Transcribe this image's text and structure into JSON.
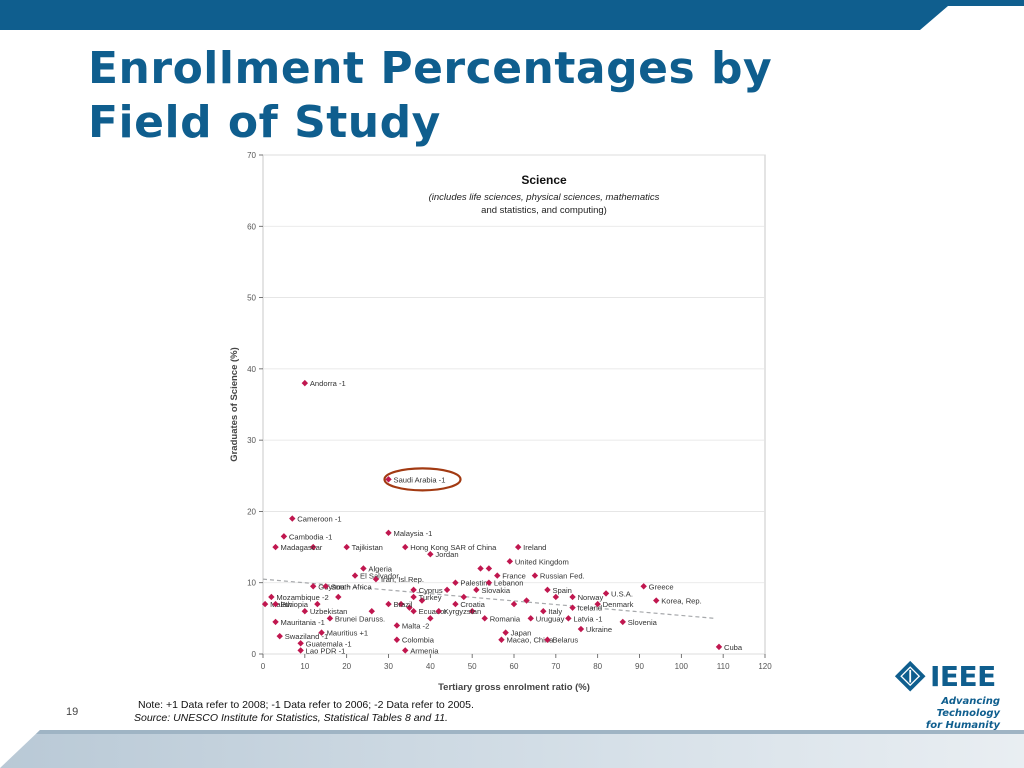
{
  "slide": {
    "title": "Enrollment Percentages by Field of Study",
    "note": "Note: +1 Data refer to 2008; -1 Data refer to 2006; -2 Data refer to 2005.",
    "source": "Source: UNESCO Institute for Statistics, Statistical Tables 8 and 11.",
    "slide_number": "19",
    "logo_text": "IEEE",
    "tagline_line1": "Advancing Technology",
    "tagline_line2": "for Humanity"
  },
  "colors": {
    "brand_blue": "#0f5e8e",
    "point": "#c0174f",
    "highlight_circle": "#a23a12",
    "trend": "#a7a9ac"
  },
  "chart_data": {
    "type": "scatter",
    "title": "Science",
    "subtitle_line1": "(includes life sciences, physical sciences, mathematics",
    "subtitle_line2": "and statistics, and computing)",
    "xlabel": "Tertiary gross enrolment ratio (%)",
    "ylabel": "Graduates of Science (%)",
    "xlim": [
      0,
      120
    ],
    "ylim": [
      0,
      70
    ],
    "xticks": [
      0,
      10,
      20,
      30,
      40,
      50,
      60,
      70,
      80,
      90,
      100,
      110,
      120
    ],
    "yticks": [
      0,
      10,
      20,
      30,
      40,
      50,
      60,
      70
    ],
    "grid": "horizontal",
    "highlighted": "Saudi Arabia -1",
    "trend_line": [
      [
        0,
        10.5
      ],
      [
        108,
        5
      ]
    ],
    "labeled_points": [
      {
        "label": "Andorra -1",
        "x": 10,
        "y": 38
      },
      {
        "label": "Saudi Arabia -1",
        "x": 30,
        "y": 24.5
      },
      {
        "label": "Cameroon -1",
        "x": 7,
        "y": 19
      },
      {
        "label": "Cambodia -1",
        "x": 5,
        "y": 16.5
      },
      {
        "label": "Madagascar",
        "x": 3,
        "y": 15
      },
      {
        "label": "Tajikistan",
        "x": 20,
        "y": 15
      },
      {
        "label": "Malaysia -1",
        "x": 30,
        "y": 17
      },
      {
        "label": "Hong Kong SAR of China",
        "x": 34,
        "y": 15
      },
      {
        "label": "Jordan",
        "x": 40,
        "y": 14
      },
      {
        "label": "Algeria",
        "x": 24,
        "y": 12
      },
      {
        "label": "El Salvador",
        "x": 22,
        "y": 11
      },
      {
        "label": "Guyana",
        "x": 12,
        "y": 9.5
      },
      {
        "label": "Iran, Isl.Rep.",
        "x": 27,
        "y": 10.5
      },
      {
        "label": "Palestine",
        "x": 46,
        "y": 10
      },
      {
        "label": "Cyprus",
        "x": 36,
        "y": 9
      },
      {
        "label": "Turkey",
        "x": 36,
        "y": 8
      },
      {
        "label": "South Africa",
        "x": 15,
        "y": 9.5
      },
      {
        "label": "Brazil",
        "x": 30,
        "y": 7
      },
      {
        "label": "Mozambique -2",
        "x": 2,
        "y": 8
      },
      {
        "label": "Malawi",
        "x": 0.5,
        "y": 7
      },
      {
        "label": "Ethiopia",
        "x": 3,
        "y": 7
      },
      {
        "label": "Mauritania -1",
        "x": 3,
        "y": 4.5
      },
      {
        "label": "Uzbekistan",
        "x": 10,
        "y": 6
      },
      {
        "label": "Brunei Daruss.",
        "x": 16,
        "y": 5
      },
      {
        "label": "Ecuador",
        "x": 36,
        "y": 6
      },
      {
        "label": "Malta -2",
        "x": 32,
        "y": 4
      },
      {
        "label": "Mauritius +1",
        "x": 14,
        "y": 3
      },
      {
        "label": "Swaziland -1",
        "x": 4,
        "y": 2.5
      },
      {
        "label": "Guatemala -1",
        "x": 9,
        "y": 1.5
      },
      {
        "label": "Lao PDR -1",
        "x": 9,
        "y": 0.5
      },
      {
        "label": "Colombia",
        "x": 32,
        "y": 2
      },
      {
        "label": "Armenia",
        "x": 34,
        "y": 0.5
      },
      {
        "label": "Kyrgyzstan",
        "x": 42,
        "y": 6
      },
      {
        "label": "Croatia",
        "x": 46,
        "y": 7
      },
      {
        "label": "Slovakia",
        "x": 51,
        "y": 9
      },
      {
        "label": "Lebanon",
        "x": 54,
        "y": 10
      },
      {
        "label": "France",
        "x": 56,
        "y": 11
      },
      {
        "label": "Russian Fed.",
        "x": 65,
        "y": 11
      },
      {
        "label": "Ireland",
        "x": 61,
        "y": 15
      },
      {
        "label": "United Kingdom",
        "x": 59,
        "y": 13
      },
      {
        "label": "Romania",
        "x": 53,
        "y": 5
      },
      {
        "label": "Japan",
        "x": 58,
        "y": 3
      },
      {
        "label": "Macao, China",
        "x": 57,
        "y": 2
      },
      {
        "label": "Uruguay",
        "x": 64,
        "y": 5
      },
      {
        "label": "Italy",
        "x": 67,
        "y": 6
      },
      {
        "label": "Spain",
        "x": 68,
        "y": 9
      },
      {
        "label": "Norway",
        "x": 74,
        "y": 8
      },
      {
        "label": "Iceland",
        "x": 74,
        "y": 6.5
      },
      {
        "label": "Latvia -1",
        "x": 73,
        "y": 5
      },
      {
        "label": "Belarus",
        "x": 68,
        "y": 2
      },
      {
        "label": "Ukraine",
        "x": 76,
        "y": 3.5
      },
      {
        "label": "U.S.A.",
        "x": 82,
        "y": 8.5
      },
      {
        "label": "Denmark",
        "x": 80,
        "y": 7
      },
      {
        "label": "Slovenia",
        "x": 86,
        "y": 4.5
      },
      {
        "label": "Greece",
        "x": 91,
        "y": 9.5
      },
      {
        "label": "Korea, Rep.",
        "x": 94,
        "y": 7.5
      },
      {
        "label": "Cuba",
        "x": 109,
        "y": 1
      }
    ],
    "unlabeled_points": [
      {
        "x": 13,
        "y": 7
      },
      {
        "x": 18,
        "y": 8
      },
      {
        "x": 33,
        "y": 7
      },
      {
        "x": 35,
        "y": 6.5
      },
      {
        "x": 38,
        "y": 7.5
      },
      {
        "x": 44,
        "y": 9
      },
      {
        "x": 48,
        "y": 8
      },
      {
        "x": 50,
        "y": 6
      },
      {
        "x": 52,
        "y": 12
      },
      {
        "x": 54,
        "y": 12
      },
      {
        "x": 60,
        "y": 7
      },
      {
        "x": 63,
        "y": 7.5
      },
      {
        "x": 70,
        "y": 8
      },
      {
        "x": 26,
        "y": 6
      },
      {
        "x": 40,
        "y": 5
      },
      {
        "x": 12,
        "y": 15
      }
    ]
  }
}
